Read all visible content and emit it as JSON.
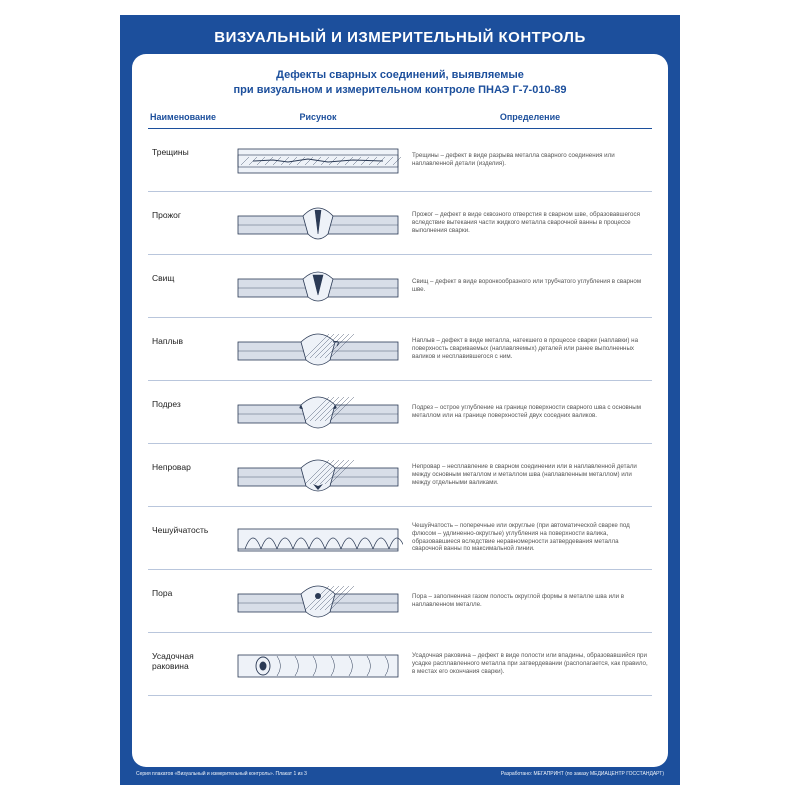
{
  "colors": {
    "frame": "#1c4f9c",
    "panel_bg": "#ffffff",
    "title_text": "#ffffff",
    "subtitle_text": "#1c4f9c",
    "header_border": "#1c4f9c",
    "row_border": "#b9c6dc",
    "name_text": "#222222",
    "def_text": "#555555",
    "svg_stroke": "#2b3a55",
    "svg_fill_light": "#eef2f8",
    "svg_fill_metal": "#d8dee8",
    "svg_fill_dark": "#2b3a55"
  },
  "main_title": "ВИЗУАЛЬНЫЙ И ИЗМЕРИТЕЛЬНЫЙ КОНТРОЛЬ",
  "subtitle_line1": "Дефекты сварных соединений, выявляемые",
  "subtitle_line2": "при визуальном и измерительном контроле ПНАЭ Г-7-010-89",
  "columns": {
    "name": "Наименование",
    "figure": "Рисунок",
    "definition": "Определение"
  },
  "rows": [
    {
      "name": "Трещины",
      "definition": "Трещины – дефект в виде разрыва металла сварного соединения или наплавленной детали (изделия).",
      "fig": "crack"
    },
    {
      "name": "Прожог",
      "definition": "Прожог – дефект в виде сквозного отверстия в сварном шве, образовавшегося вследствие вытекания части жидкого металла сварочной ванны в процессе выполнения сварки.",
      "fig": "burn"
    },
    {
      "name": "Свищ",
      "definition": "Свищ – дефект в виде воронкообразного или трубчатого углубления в сварном шве.",
      "fig": "fistula"
    },
    {
      "name": "Наплыв",
      "definition": "Наплыв – дефект в виде металла, натекшего в процессе сварки (наплавки) на поверхность свариваемых (наплавляемых) деталей или ранее выполненных валиков и несплавившегося с ним.",
      "fig": "overlap"
    },
    {
      "name": "Подрез",
      "definition": "Подрез – острое углубление на границе поверхности сварного шва с основным металлом или на границе поверхностей двух соседних валиков.",
      "fig": "undercut"
    },
    {
      "name": "Непровар",
      "definition": "Непровар – несплавление в сварном соединении или в наплавленной детали между основным металлом и металлом шва (наплавленным металлом) или между отдельными валиками.",
      "fig": "nopen"
    },
    {
      "name": "Чешуйчатость",
      "definition": "Чешуйчатость – поперечные или округлые (при автоматической сварке под флюсом – удлиненно-округлые) углубления на поверхности валика, образовавшиеся вследствие неравномерности затвердевания металла сварочной ванны по максимальной линии.",
      "fig": "scale"
    },
    {
      "name": "Пора",
      "definition": "Пора – заполненная газом полость округлой формы в металле шва или в наплавленном металле.",
      "fig": "pore"
    },
    {
      "name": "Усадочная раковина",
      "definition": "Усадочная раковина – дефект в виде полости или впадины, образовавшийся при усадке расплавленного металла при затвердевании (располагается, как правило, в местах его окончания сварки).",
      "fig": "shrink"
    }
  ],
  "footer_left": "Серия плакатов «Визуальный и измерительный контроль». Плакат 1 из 3",
  "footer_right": "Разработано: МЕГАПРИНТ (по заказу МЕДИАЦЕНТР ГОССТАНДАРТ)"
}
